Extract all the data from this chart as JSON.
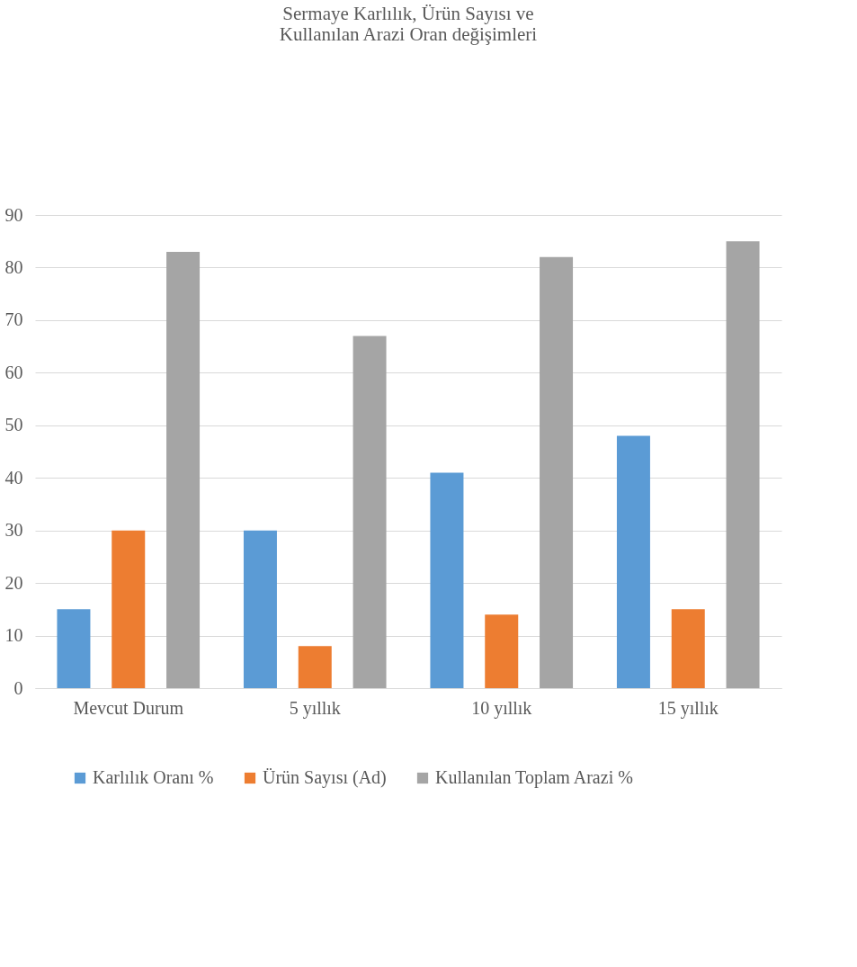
{
  "chart_data": {
    "type": "bar",
    "title": "Sermaye Karlılık, Ürün Sayısı ve\nKullanılan Arazi Oran değişimleri",
    "categories": [
      "Mevcut Durum",
      "5 yıllık",
      "10 yıllık",
      "15 yıllık"
    ],
    "series": [
      {
        "name": "Karlılık Oranı %",
        "color": "#5b9bd5",
        "values": [
          15,
          30,
          41,
          48
        ]
      },
      {
        "name": "Ürün Sayısı (Ad)",
        "color": "#ed7d31",
        "values": [
          30,
          8,
          14,
          15
        ]
      },
      {
        "name": "Kullanılan Toplam Arazi %",
        "color": "#a5a5a5",
        "values": [
          83,
          67,
          82,
          85
        ]
      }
    ],
    "ylim": [
      0,
      90
    ],
    "yticks": [
      0,
      10,
      20,
      30,
      40,
      50,
      60,
      70,
      80,
      90
    ],
    "grid": "y",
    "legend": "bottom"
  }
}
